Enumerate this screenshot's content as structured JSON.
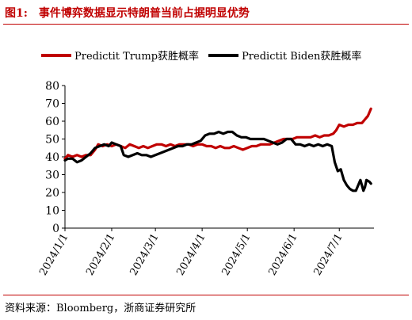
{
  "figure": {
    "label": "图1:",
    "title": "事件博弈数据显示特朗普当前占据明显优势"
  },
  "source": "资料来源：Bloomberg，浙商证券研究所",
  "colors": {
    "accent": "#c00000",
    "trump": "#c00000",
    "biden": "#000000"
  },
  "chart_data": {
    "type": "line",
    "title": "",
    "xlabel": "",
    "ylabel": "",
    "ylim": [
      0,
      80
    ],
    "yticks": [
      0,
      10,
      20,
      30,
      40,
      50,
      60,
      70,
      80
    ],
    "xlim": [
      "2024-01-01",
      "2024-07-24"
    ],
    "xticks": [
      "2024/1/1",
      "2024/2/1",
      "2024/3/1",
      "2024/4/1",
      "2024/5/1",
      "2024/6/1",
      "2024/7/1"
    ],
    "grid": false,
    "legend": "top",
    "series": [
      {
        "name": "Predictit Trump获胜概率",
        "color": "#c00000",
        "points": [
          [
            "2024-01-01",
            39
          ],
          [
            "2024-01-03",
            41
          ],
          [
            "2024-01-06",
            40
          ],
          [
            "2024-01-09",
            41
          ],
          [
            "2024-01-12",
            40
          ],
          [
            "2024-01-15",
            41
          ],
          [
            "2024-01-18",
            41
          ],
          [
            "2024-01-21",
            44
          ],
          [
            "2024-01-23",
            47
          ],
          [
            "2024-01-26",
            46
          ],
          [
            "2024-01-29",
            47
          ],
          [
            "2024-02-01",
            46
          ],
          [
            "2024-02-04",
            47
          ],
          [
            "2024-02-07",
            46
          ],
          [
            "2024-02-10",
            45
          ],
          [
            "2024-02-13",
            47
          ],
          [
            "2024-02-16",
            46
          ],
          [
            "2024-02-19",
            45
          ],
          [
            "2024-02-22",
            46
          ],
          [
            "2024-02-25",
            45
          ],
          [
            "2024-02-28",
            46
          ],
          [
            "2024-03-02",
            47
          ],
          [
            "2024-03-05",
            47
          ],
          [
            "2024-03-08",
            46
          ],
          [
            "2024-03-11",
            47
          ],
          [
            "2024-03-14",
            46
          ],
          [
            "2024-03-17",
            47
          ],
          [
            "2024-03-20",
            47
          ],
          [
            "2024-03-23",
            47
          ],
          [
            "2024-03-26",
            46
          ],
          [
            "2024-03-29",
            47
          ],
          [
            "2024-04-01",
            47
          ],
          [
            "2024-04-04",
            46
          ],
          [
            "2024-04-07",
            46
          ],
          [
            "2024-04-10",
            45
          ],
          [
            "2024-04-13",
            46
          ],
          [
            "2024-04-16",
            45
          ],
          [
            "2024-04-19",
            45
          ],
          [
            "2024-04-22",
            46
          ],
          [
            "2024-04-25",
            45
          ],
          [
            "2024-04-28",
            44
          ],
          [
            "2024-05-01",
            45
          ],
          [
            "2024-05-04",
            46
          ],
          [
            "2024-05-07",
            46
          ],
          [
            "2024-05-10",
            47
          ],
          [
            "2024-05-13",
            47
          ],
          [
            "2024-05-16",
            47
          ],
          [
            "2024-05-19",
            48
          ],
          [
            "2024-05-22",
            49
          ],
          [
            "2024-05-25",
            50
          ],
          [
            "2024-05-28",
            50
          ],
          [
            "2024-05-31",
            50
          ],
          [
            "2024-06-03",
            51
          ],
          [
            "2024-06-06",
            51
          ],
          [
            "2024-06-09",
            51
          ],
          [
            "2024-06-12",
            51
          ],
          [
            "2024-06-15",
            52
          ],
          [
            "2024-06-18",
            51
          ],
          [
            "2024-06-21",
            52
          ],
          [
            "2024-06-24",
            52
          ],
          [
            "2024-06-27",
            53
          ],
          [
            "2024-06-29",
            55
          ],
          [
            "2024-07-01",
            58
          ],
          [
            "2024-07-04",
            57
          ],
          [
            "2024-07-07",
            58
          ],
          [
            "2024-07-10",
            58
          ],
          [
            "2024-07-13",
            59
          ],
          [
            "2024-07-16",
            59
          ],
          [
            "2024-07-18",
            61
          ],
          [
            "2024-07-20",
            63
          ],
          [
            "2024-07-22",
            67
          ]
        ]
      },
      {
        "name": "Predictit Biden获胜概率",
        "color": "#000000",
        "points": [
          [
            "2024-01-01",
            38
          ],
          [
            "2024-01-03",
            39
          ],
          [
            "2024-01-06",
            39
          ],
          [
            "2024-01-09",
            37
          ],
          [
            "2024-01-12",
            38
          ],
          [
            "2024-01-15",
            40
          ],
          [
            "2024-01-18",
            42
          ],
          [
            "2024-01-21",
            45
          ],
          [
            "2024-01-24",
            46
          ],
          [
            "2024-01-27",
            47
          ],
          [
            "2024-01-30",
            46
          ],
          [
            "2024-02-01",
            48
          ],
          [
            "2024-02-04",
            47
          ],
          [
            "2024-02-07",
            46
          ],
          [
            "2024-02-09",
            41
          ],
          [
            "2024-02-12",
            40
          ],
          [
            "2024-02-15",
            41
          ],
          [
            "2024-02-18",
            42
          ],
          [
            "2024-02-21",
            41
          ],
          [
            "2024-02-24",
            41
          ],
          [
            "2024-02-27",
            40
          ],
          [
            "2024-03-01",
            41
          ],
          [
            "2024-03-04",
            42
          ],
          [
            "2024-03-07",
            43
          ],
          [
            "2024-03-10",
            44
          ],
          [
            "2024-03-13",
            45
          ],
          [
            "2024-03-16",
            46
          ],
          [
            "2024-03-19",
            46
          ],
          [
            "2024-03-22",
            47
          ],
          [
            "2024-03-25",
            47
          ],
          [
            "2024-03-28",
            48
          ],
          [
            "2024-03-31",
            49
          ],
          [
            "2024-04-03",
            52
          ],
          [
            "2024-04-06",
            53
          ],
          [
            "2024-04-09",
            53
          ],
          [
            "2024-04-12",
            54
          ],
          [
            "2024-04-15",
            53
          ],
          [
            "2024-04-18",
            54
          ],
          [
            "2024-04-21",
            54
          ],
          [
            "2024-04-24",
            52
          ],
          [
            "2024-04-27",
            51
          ],
          [
            "2024-04-30",
            51
          ],
          [
            "2024-05-03",
            50
          ],
          [
            "2024-05-06",
            50
          ],
          [
            "2024-05-09",
            50
          ],
          [
            "2024-05-12",
            50
          ],
          [
            "2024-05-15",
            49
          ],
          [
            "2024-05-18",
            48
          ],
          [
            "2024-05-21",
            47
          ],
          [
            "2024-05-24",
            48
          ],
          [
            "2024-05-27",
            50
          ],
          [
            "2024-05-30",
            50
          ],
          [
            "2024-06-02",
            47
          ],
          [
            "2024-06-05",
            47
          ],
          [
            "2024-06-08",
            46
          ],
          [
            "2024-06-11",
            47
          ],
          [
            "2024-06-14",
            46
          ],
          [
            "2024-06-17",
            47
          ],
          [
            "2024-06-20",
            46
          ],
          [
            "2024-06-23",
            47
          ],
          [
            "2024-06-26",
            46
          ],
          [
            "2024-06-28",
            37
          ],
          [
            "2024-06-30",
            32
          ],
          [
            "2024-07-02",
            33
          ],
          [
            "2024-07-04",
            27
          ],
          [
            "2024-07-06",
            24
          ],
          [
            "2024-07-08",
            22
          ],
          [
            "2024-07-10",
            21
          ],
          [
            "2024-07-12",
            21
          ],
          [
            "2024-07-14",
            25
          ],
          [
            "2024-07-15",
            27
          ],
          [
            "2024-07-17",
            21
          ],
          [
            "2024-07-18",
            23
          ],
          [
            "2024-07-19",
            27
          ],
          [
            "2024-07-21",
            26
          ],
          [
            "2024-07-22",
            25
          ]
        ]
      }
    ]
  }
}
